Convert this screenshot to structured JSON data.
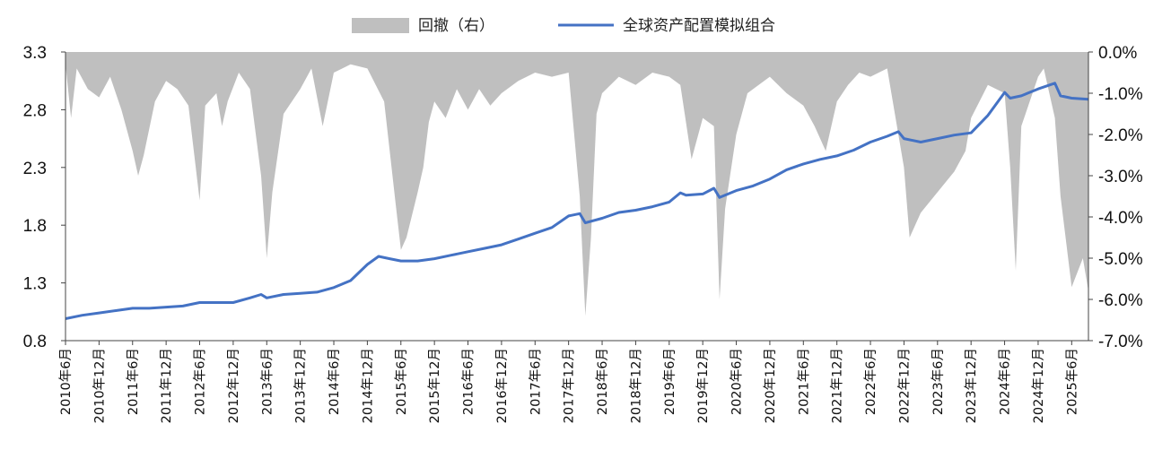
{
  "chart_data": {
    "type": "line+area",
    "title": "",
    "legend": {
      "placement": "top-center",
      "items": [
        {
          "label": "回撤（右）",
          "color": "#bfbfbf",
          "kind": "area"
        },
        {
          "label": "全球资产配置模拟组合",
          "color": "#4472c4",
          "kind": "line"
        }
      ]
    },
    "left_axis": {
      "min": 0.8,
      "max": 3.3,
      "ticks": [
        "0.8",
        "1.3",
        "1.8",
        "2.3",
        "2.8",
        "3.3"
      ]
    },
    "right_axis": {
      "min": -7.0,
      "max": 0.0,
      "ticks": [
        "0.0%",
        "-1.0%",
        "-2.0%",
        "-3.0%",
        "-4.0%",
        "-5.0%",
        "-6.0%",
        "-7.0%"
      ]
    },
    "x_labels": [
      "2010年6月",
      "2010年12月",
      "2011年6月",
      "2011年12月",
      "2012年6月",
      "2012年12月",
      "2013年6月",
      "2013年12月",
      "2014年6月",
      "2014年12月",
      "2015年6月",
      "2015年12月",
      "2016年6月",
      "2016年12月",
      "2017年6月",
      "2017年12月",
      "2018年6月",
      "2018年12月",
      "2019年6月",
      "2019年12月",
      "2020年6月",
      "2020年12月",
      "2021年6月",
      "2021年12月",
      "2022年6月",
      "2022年12月",
      "2023年6月",
      "2023年12月",
      "2024年6月",
      "2024年12月",
      "2025年6月"
    ],
    "x_range": [
      "2010-06",
      "2025-09"
    ],
    "grid": false,
    "series": [
      {
        "name": "全球资产配置模拟组合",
        "axis": "left",
        "points": [
          [
            "2010-06",
            0.99
          ],
          [
            "2010-09",
            1.02
          ],
          [
            "2010-12",
            1.04
          ],
          [
            "2011-03",
            1.06
          ],
          [
            "2011-06",
            1.08
          ],
          [
            "2011-09",
            1.08
          ],
          [
            "2011-12",
            1.09
          ],
          [
            "2012-03",
            1.1
          ],
          [
            "2012-06",
            1.13
          ],
          [
            "2012-09",
            1.13
          ],
          [
            "2012-12",
            1.13
          ],
          [
            "2013-03",
            1.17
          ],
          [
            "2013-05",
            1.2
          ],
          [
            "2013-06",
            1.17
          ],
          [
            "2013-09",
            1.2
          ],
          [
            "2013-12",
            1.21
          ],
          [
            "2014-03",
            1.22
          ],
          [
            "2014-06",
            1.26
          ],
          [
            "2014-09",
            1.32
          ],
          [
            "2014-12",
            1.46
          ],
          [
            "2015-02",
            1.53
          ],
          [
            "2015-04",
            1.51
          ],
          [
            "2015-06",
            1.49
          ],
          [
            "2015-09",
            1.49
          ],
          [
            "2015-12",
            1.51
          ],
          [
            "2016-03",
            1.54
          ],
          [
            "2016-06",
            1.57
          ],
          [
            "2016-09",
            1.6
          ],
          [
            "2016-12",
            1.63
          ],
          [
            "2017-03",
            1.68
          ],
          [
            "2017-06",
            1.73
          ],
          [
            "2017-09",
            1.78
          ],
          [
            "2017-12",
            1.88
          ],
          [
            "2018-02",
            1.9
          ],
          [
            "2018-03",
            1.82
          ],
          [
            "2018-06",
            1.86
          ],
          [
            "2018-09",
            1.91
          ],
          [
            "2018-12",
            1.93
          ],
          [
            "2019-03",
            1.96
          ],
          [
            "2019-06",
            2.0
          ],
          [
            "2019-08",
            2.08
          ],
          [
            "2019-09",
            2.06
          ],
          [
            "2019-12",
            2.07
          ],
          [
            "2020-02",
            2.12
          ],
          [
            "2020-03",
            2.04
          ],
          [
            "2020-06",
            2.1
          ],
          [
            "2020-09",
            2.14
          ],
          [
            "2020-12",
            2.2
          ],
          [
            "2021-03",
            2.28
          ],
          [
            "2021-06",
            2.33
          ],
          [
            "2021-09",
            2.37
          ],
          [
            "2021-12",
            2.4
          ],
          [
            "2022-03",
            2.45
          ],
          [
            "2022-06",
            2.52
          ],
          [
            "2022-09",
            2.57
          ],
          [
            "2022-11",
            2.61
          ],
          [
            "2022-12",
            2.55
          ],
          [
            "2023-03",
            2.52
          ],
          [
            "2023-06",
            2.55
          ],
          [
            "2023-09",
            2.58
          ],
          [
            "2023-12",
            2.6
          ],
          [
            "2024-03",
            2.75
          ],
          [
            "2024-06",
            2.95
          ],
          [
            "2024-07",
            2.9
          ],
          [
            "2024-09",
            2.92
          ],
          [
            "2024-12",
            2.98
          ],
          [
            "2025-03",
            3.03
          ],
          [
            "2025-04",
            2.92
          ],
          [
            "2025-06",
            2.9
          ],
          [
            "2025-09",
            2.89
          ]
        ]
      },
      {
        "name": "回撤（右）",
        "axis": "right",
        "points": [
          [
            "2010-06",
            -0.3
          ],
          [
            "2010-07",
            -1.6
          ],
          [
            "2010-08",
            -0.4
          ],
          [
            "2010-10",
            -0.9
          ],
          [
            "2010-12",
            -1.1
          ],
          [
            "2011-02",
            -0.6
          ],
          [
            "2011-04",
            -1.4
          ],
          [
            "2011-06",
            -2.4
          ],
          [
            "2011-07",
            -3.0
          ],
          [
            "2011-08",
            -2.5
          ],
          [
            "2011-10",
            -1.2
          ],
          [
            "2011-12",
            -0.7
          ],
          [
            "2012-02",
            -0.9
          ],
          [
            "2012-04",
            -1.3
          ],
          [
            "2012-06",
            -3.6
          ],
          [
            "2012-07",
            -1.3
          ],
          [
            "2012-09",
            -1.0
          ],
          [
            "2012-10",
            -1.8
          ],
          [
            "2012-11",
            -1.2
          ],
          [
            "2013-01",
            -0.5
          ],
          [
            "2013-03",
            -0.9
          ],
          [
            "2013-05",
            -3.0
          ],
          [
            "2013-06",
            -5.0
          ],
          [
            "2013-07",
            -3.4
          ],
          [
            "2013-09",
            -1.5
          ],
          [
            "2013-12",
            -0.9
          ],
          [
            "2014-02",
            -0.4
          ],
          [
            "2014-04",
            -1.8
          ],
          [
            "2014-06",
            -0.5
          ],
          [
            "2014-09",
            -0.3
          ],
          [
            "2014-12",
            -0.4
          ],
          [
            "2015-03",
            -1.2
          ],
          [
            "2015-05",
            -3.6
          ],
          [
            "2015-06",
            -4.8
          ],
          [
            "2015-07",
            -4.5
          ],
          [
            "2015-09",
            -3.4
          ],
          [
            "2015-10",
            -2.8
          ],
          [
            "2015-11",
            -1.7
          ],
          [
            "2015-12",
            -1.2
          ],
          [
            "2016-02",
            -1.6
          ],
          [
            "2016-04",
            -0.9
          ],
          [
            "2016-06",
            -1.4
          ],
          [
            "2016-08",
            -0.9
          ],
          [
            "2016-10",
            -1.3
          ],
          [
            "2016-12",
            -1.0
          ],
          [
            "2017-03",
            -0.7
          ],
          [
            "2017-06",
            -0.5
          ],
          [
            "2017-09",
            -0.6
          ],
          [
            "2017-12",
            -0.5
          ],
          [
            "2018-02",
            -3.5
          ],
          [
            "2018-03",
            -6.4
          ],
          [
            "2018-04",
            -4.5
          ],
          [
            "2018-05",
            -1.5
          ],
          [
            "2018-06",
            -1.0
          ],
          [
            "2018-09",
            -0.6
          ],
          [
            "2018-12",
            -0.8
          ],
          [
            "2019-03",
            -0.5
          ],
          [
            "2019-06",
            -0.6
          ],
          [
            "2019-08",
            -0.8
          ],
          [
            "2019-10",
            -2.6
          ],
          [
            "2019-12",
            -1.6
          ],
          [
            "2020-02",
            -1.8
          ],
          [
            "2020-03",
            -6.0
          ],
          [
            "2020-04",
            -3.8
          ],
          [
            "2020-06",
            -2.0
          ],
          [
            "2020-08",
            -1.0
          ],
          [
            "2020-10",
            -0.8
          ],
          [
            "2020-12",
            -0.6
          ],
          [
            "2021-03",
            -1.0
          ],
          [
            "2021-06",
            -1.3
          ],
          [
            "2021-08",
            -1.8
          ],
          [
            "2021-10",
            -2.4
          ],
          [
            "2021-12",
            -1.2
          ],
          [
            "2022-02",
            -0.8
          ],
          [
            "2022-04",
            -0.5
          ],
          [
            "2022-06",
            -0.6
          ],
          [
            "2022-09",
            -0.4
          ],
          [
            "2022-12",
            -2.8
          ],
          [
            "2023-01",
            -4.5
          ],
          [
            "2023-03",
            -3.9
          ],
          [
            "2023-06",
            -3.4
          ],
          [
            "2023-09",
            -2.9
          ],
          [
            "2023-11",
            -2.4
          ],
          [
            "2023-12",
            -1.6
          ],
          [
            "2024-03",
            -0.8
          ],
          [
            "2024-06",
            -1.0
          ],
          [
            "2024-07",
            -2.8
          ],
          [
            "2024-08",
            -5.3
          ],
          [
            "2024-09",
            -1.8
          ],
          [
            "2024-12",
            -0.6
          ],
          [
            "2025-01",
            -0.4
          ],
          [
            "2025-03",
            -1.6
          ],
          [
            "2025-04",
            -3.5
          ],
          [
            "2025-06",
            -5.7
          ],
          [
            "2025-08",
            -5.0
          ],
          [
            "2025-09",
            -5.8
          ]
        ]
      }
    ]
  }
}
